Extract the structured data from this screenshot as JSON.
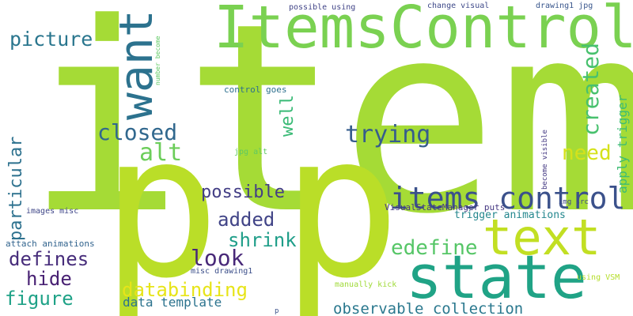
{
  "words": [
    {
      "text": "item",
      "color": "#a5db36"
    },
    {
      "text": "p",
      "color": "#bade28"
    },
    {
      "text": "p",
      "color": "#bade28"
    },
    {
      "text": "ItemsControl",
      "color": "#7ad151"
    },
    {
      "text": "state",
      "color": "#20a386"
    },
    {
      "text": "text",
      "color": "#c2df23"
    },
    {
      "text": "want",
      "color": "#2c728e"
    },
    {
      "text": "items control",
      "color": "#3b518b"
    },
    {
      "text": "picture",
      "color": "#2a768e"
    },
    {
      "text": "closed",
      "color": "#31688e"
    },
    {
      "text": "trying",
      "color": "#365d8d"
    },
    {
      "text": "created",
      "color": "#48c16e"
    },
    {
      "text": "well",
      "color": "#3aba76"
    },
    {
      "text": "alt",
      "color": "#6ccd5a"
    },
    {
      "text": "need",
      "color": "#d5e21a"
    },
    {
      "text": "apply trigger",
      "color": "#3dbc74"
    },
    {
      "text": "possible",
      "color": "#433e85"
    },
    {
      "text": "particular",
      "color": "#2d718e"
    },
    {
      "text": "added",
      "color": "#414487"
    },
    {
      "text": "shrink",
      "color": "#1f9e89"
    },
    {
      "text": "edefine",
      "color": "#56c667"
    },
    {
      "text": "look",
      "color": "#482878"
    },
    {
      "text": "defines",
      "color": "#472d7b"
    },
    {
      "text": "hide",
      "color": "#482173"
    },
    {
      "text": "databinding",
      "color": "#e7e419"
    },
    {
      "text": "figure",
      "color": "#1fa287"
    },
    {
      "text": "data template",
      "color": "#2c738e"
    },
    {
      "text": "observable collection",
      "color": "#2a788e"
    },
    {
      "text": "trigger animations",
      "color": "#24878e"
    },
    {
      "text": "VisualStateManager puts",
      "color": "#453882"
    },
    {
      "text": "become visible",
      "color": "#443983"
    },
    {
      "text": "img src",
      "color": "#3f4889"
    },
    {
      "text": "control goes",
      "color": "#2d708e"
    },
    {
      "text": "jpg alt",
      "color": "#5ec962"
    },
    {
      "text": "images misc",
      "color": "#3f4788"
    },
    {
      "text": "attach animations",
      "color": "#32648e"
    },
    {
      "text": "misc drawing1",
      "color": "#3c4f8a"
    },
    {
      "text": "manually kick",
      "color": "#a0da39"
    },
    {
      "text": "using VSM",
      "color": "#b5de2b"
    },
    {
      "text": "possible using",
      "color": "#414487"
    },
    {
      "text": "change visual",
      "color": "#3e4989"
    },
    {
      "text": "drawing1 jpg",
      "color": "#39568c"
    },
    {
      "text": "number become",
      "color": "#5ec962"
    },
    {
      "text": "p",
      "color": "#3b528b"
    }
  ]
}
